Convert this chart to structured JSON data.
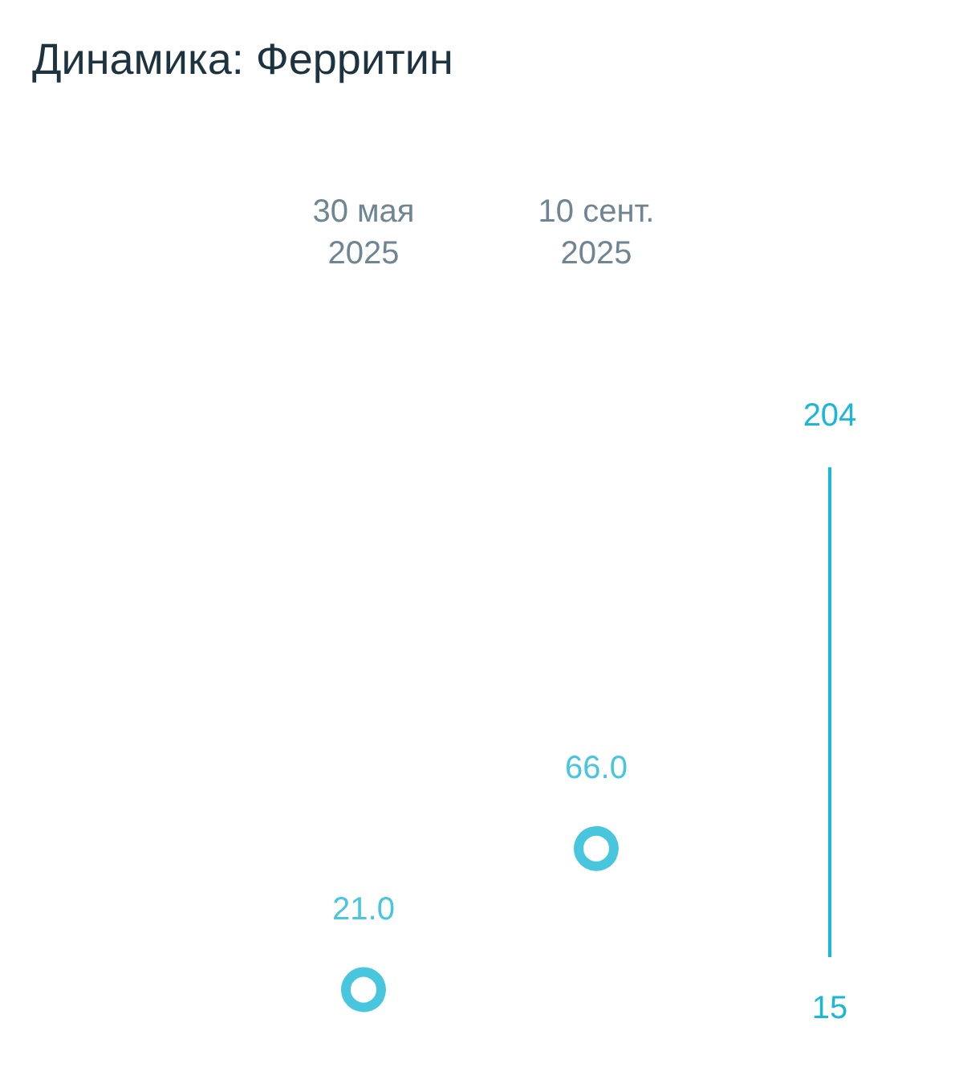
{
  "chart_data": {
    "type": "scatter",
    "title": "Динамика: Ферритин",
    "categories": [
      "30 мая\n2025",
      "10 сент.\n2025"
    ],
    "series": [
      {
        "color": "#1ab8d6",
        "values": [
          21.0,
          66.0
        ],
        "value_labels": [
          "21.0",
          "66.0"
        ]
      }
    ],
    "ylim": [
      15,
      204
    ],
    "yticks": [
      15,
      204
    ],
    "grid": false,
    "marker": "circle"
  }
}
